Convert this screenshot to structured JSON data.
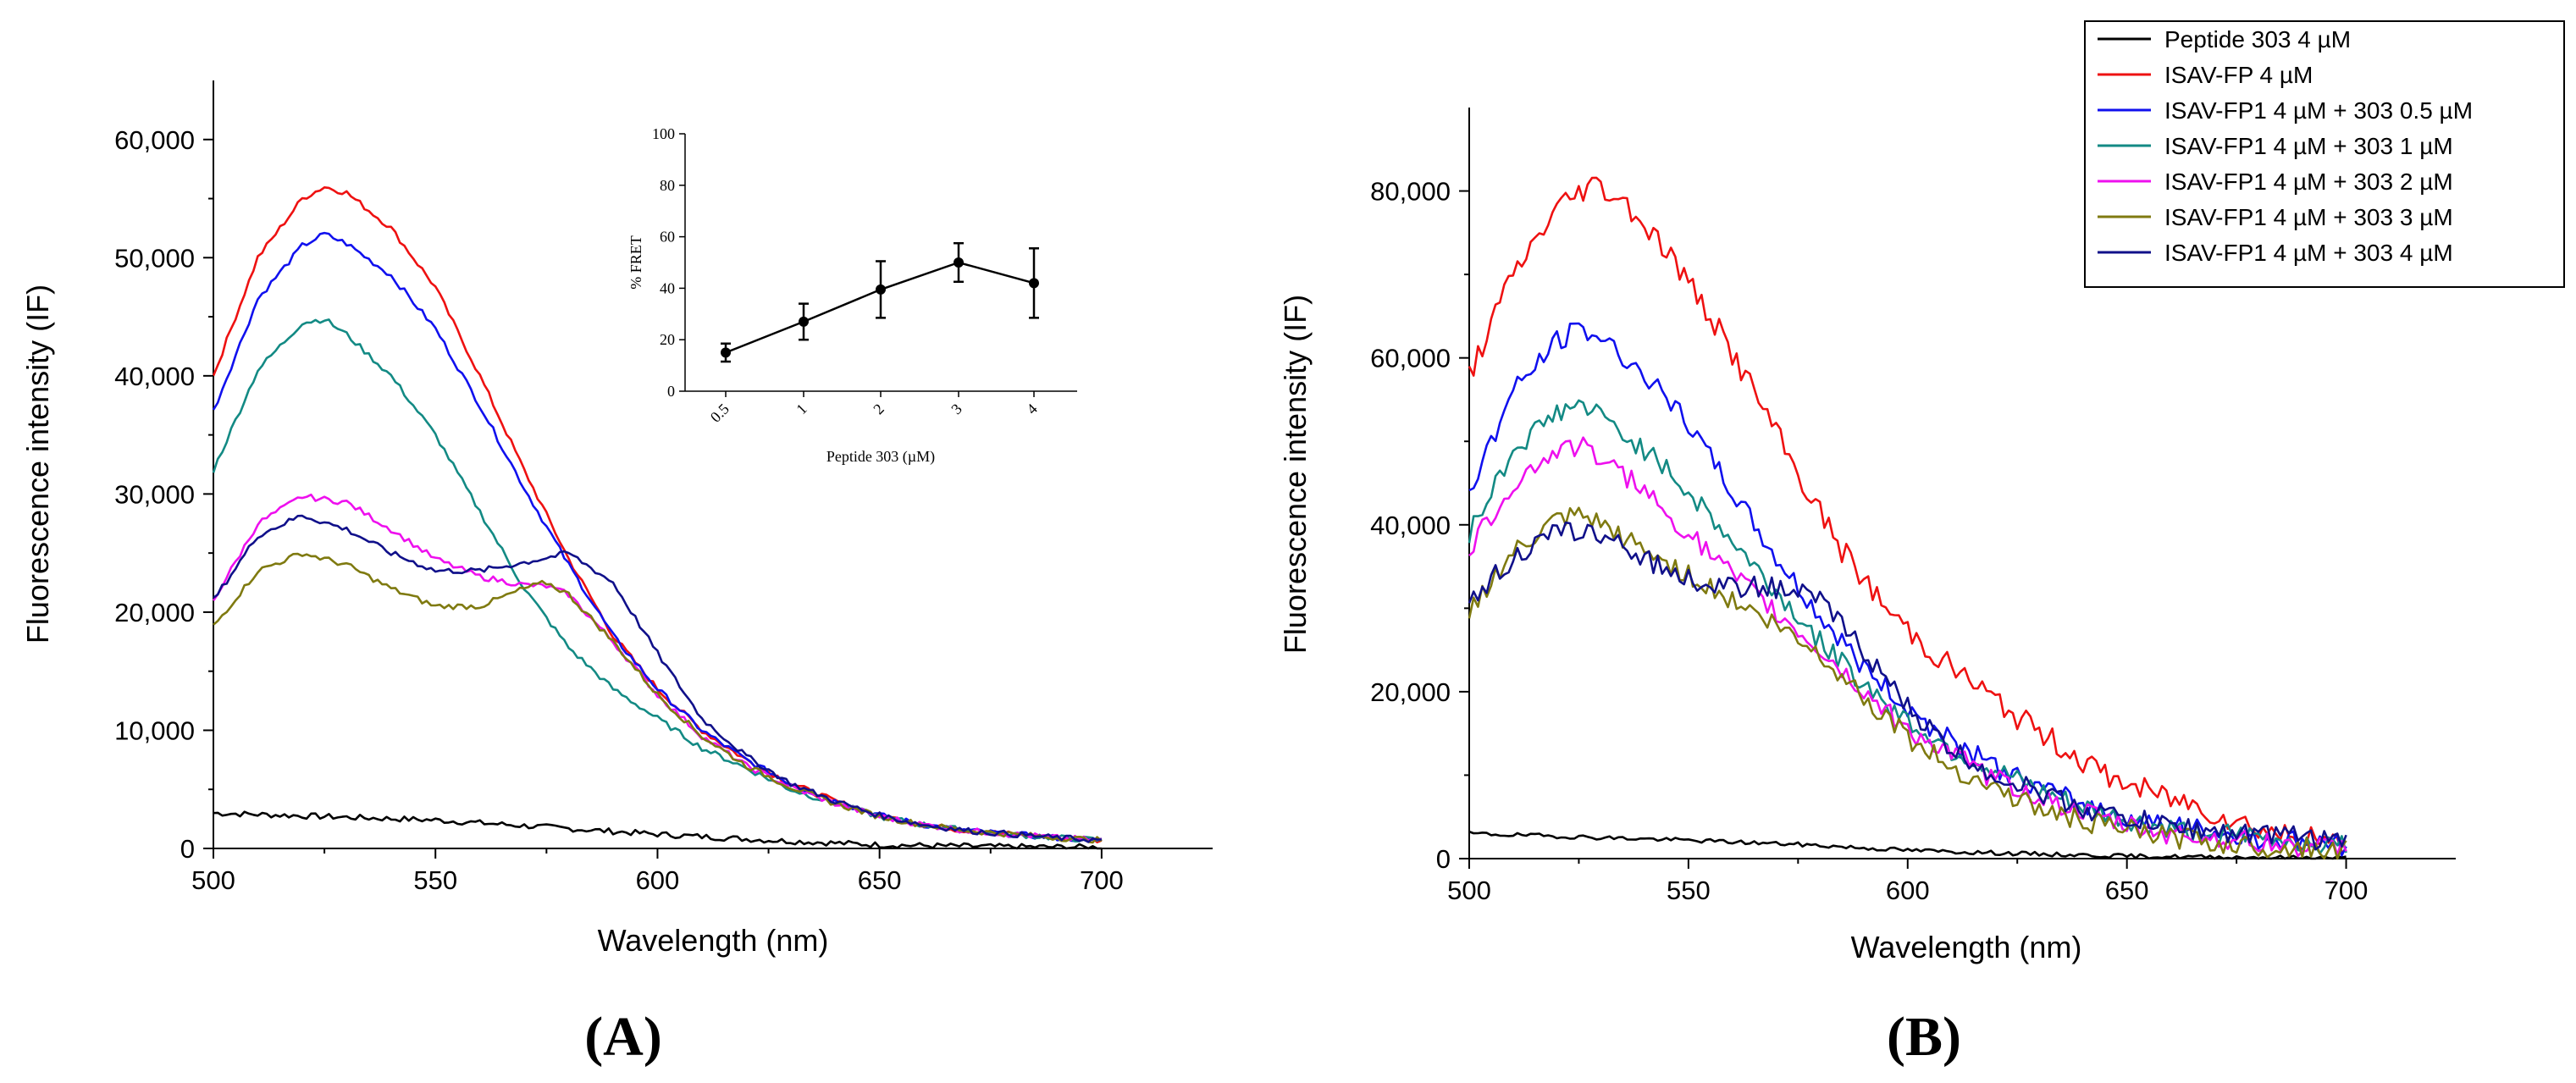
{
  "colors": {
    "peptide303": "#000000",
    "isav_fp": "#ee1111",
    "c05": "#1010ee",
    "c1": "#138a84",
    "c2": "#ee10ee",
    "c3": "#7f7a10",
    "c4": "#10108a"
  },
  "chart_data": [
    {
      "id": "A",
      "type": "line",
      "panel_label": "(A)",
      "xlabel": "Wavelength (nm)",
      "ylabel": "Fluorescence intensity (IF)",
      "xlim": [
        500,
        725
      ],
      "ylim": [
        0,
        65000
      ],
      "x_ticks": [
        500,
        550,
        600,
        650,
        700
      ],
      "x_tick_labels": [
        "500",
        "550",
        "600",
        "650",
        "700"
      ],
      "y_ticks": [
        0,
        10000,
        20000,
        30000,
        40000,
        50000,
        60000
      ],
      "y_tick_labels": [
        "0",
        "10,000",
        "20,000",
        "30,000",
        "40,000",
        "50,000",
        "60,000"
      ],
      "series": [
        {
          "name": "Peptide 303 4 µM",
          "color_key": "peptide303",
          "noise": 250,
          "x": [
            500,
            525,
            550,
            575,
            600,
            625,
            650,
            675,
            700
          ],
          "y": [
            3000,
            2700,
            2400,
            1800,
            1200,
            700,
            300,
            150,
            100
          ]
        },
        {
          "name": "ISAV-FP 4 µM",
          "color_key": "isav_fp",
          "noise": 250,
          "x": [
            500,
            510,
            520,
            525,
            530,
            540,
            550,
            560,
            570,
            580,
            590,
            600,
            610,
            620,
            630,
            640,
            650,
            660,
            670,
            680,
            690,
            700
          ],
          "y": [
            40000,
            50000,
            55000,
            56000,
            55500,
            52500,
            47500,
            40000,
            32000,
            24500,
            18000,
            13500,
            10000,
            7500,
            5500,
            4000,
            2800,
            2000,
            1500,
            1200,
            900,
            700
          ]
        },
        {
          "name": "ISAV-FP1 4 µM + 303 0.5 µM",
          "color_key": "c05",
          "noise": 250,
          "x": [
            500,
            510,
            520,
            525,
            530,
            540,
            550,
            560,
            570,
            580,
            590,
            600,
            610,
            620,
            630,
            640,
            650,
            660,
            670,
            680,
            690,
            700
          ],
          "y": [
            37000,
            46500,
            51000,
            52000,
            51200,
            48500,
            44000,
            37500,
            30500,
            24000,
            18000,
            13500,
            10000,
            7500,
            5500,
            4000,
            2800,
            2000,
            1500,
            1200,
            900,
            700
          ]
        },
        {
          "name": "ISAV-FP1 4 µM + 303 1 µM",
          "color_key": "c1",
          "noise": 250,
          "x": [
            500,
            510,
            520,
            525,
            530,
            540,
            550,
            560,
            570,
            580,
            590,
            600,
            610,
            620,
            630,
            640,
            650,
            660,
            670,
            680,
            690,
            700
          ],
          "y": [
            32000,
            40500,
            44500,
            44800,
            43500,
            40000,
            35000,
            28500,
            22000,
            17000,
            13500,
            11000,
            8500,
            6800,
            5000,
            3800,
            2700,
            2000,
            1500,
            1200,
            900,
            700
          ]
        },
        {
          "name": "ISAV-FP1 4 µM + 303 2 µM",
          "color_key": "c2",
          "noise": 250,
          "x": [
            500,
            510,
            520,
            530,
            540,
            550,
            560,
            570,
            575,
            580,
            590,
            600,
            610,
            620,
            630,
            640,
            650,
            660,
            670,
            680,
            690,
            700
          ],
          "y": [
            21000,
            27500,
            29800,
            29300,
            27000,
            24500,
            23000,
            22300,
            22200,
            21500,
            17500,
            13000,
            9500,
            7000,
            5200,
            3800,
            2700,
            2000,
            1500,
            1200,
            900,
            700
          ]
        },
        {
          "name": "ISAV-FP1 4 µM + 303 3 µM",
          "color_key": "c3",
          "noise": 250,
          "x": [
            500,
            510,
            520,
            530,
            540,
            550,
            560,
            570,
            575,
            580,
            590,
            600,
            610,
            620,
            630,
            640,
            650,
            660,
            670,
            680,
            690,
            700
          ],
          "y": [
            18800,
            23500,
            25000,
            24000,
            22000,
            20500,
            20500,
            22000,
            22500,
            21500,
            17500,
            13000,
            9500,
            7000,
            5200,
            3800,
            2700,
            2000,
            1500,
            1200,
            900,
            700
          ]
        },
        {
          "name": "ISAV-FP1 4 µM + 303 4 µM",
          "color_key": "c4",
          "noise": 250,
          "x": [
            500,
            510,
            520,
            530,
            540,
            550,
            560,
            570,
            580,
            590,
            600,
            610,
            620,
            630,
            640,
            650,
            660,
            670,
            680,
            690,
            700
          ],
          "y": [
            21000,
            26500,
            28200,
            27000,
            25000,
            23500,
            23500,
            24200,
            25000,
            22500,
            16500,
            11000,
            7800,
            5500,
            4000,
            2800,
            2000,
            1500,
            1200,
            900,
            700
          ]
        }
      ],
      "inset": {
        "type": "line",
        "xlabel": "Peptide 303 (µM)",
        "ylabel": "% FRET",
        "ylim": [
          0,
          100
        ],
        "y_ticks": [
          0,
          20,
          40,
          60,
          80,
          100
        ],
        "y_tick_labels": [
          "0",
          "20",
          "40",
          "60",
          "80",
          "100"
        ],
        "categories": [
          "0.5",
          "1",
          "2",
          "3",
          "4"
        ],
        "values": [
          15,
          27,
          39.5,
          50,
          42
        ],
        "errors": [
          3.5,
          7,
          11,
          7.5,
          13.5
        ]
      }
    },
    {
      "id": "B",
      "type": "line",
      "panel_label": "(B)",
      "xlabel": "Wavelength (nm)",
      "ylabel": "Fluorescence intensity (IF)",
      "xlim": [
        500,
        725
      ],
      "ylim": [
        0,
        90000
      ],
      "x_ticks": [
        500,
        550,
        600,
        650,
        700
      ],
      "x_tick_labels": [
        "500",
        "550",
        "600",
        "650",
        "700"
      ],
      "y_ticks": [
        0,
        20000,
        40000,
        60000,
        80000
      ],
      "y_tick_labels": [
        "0",
        "20,000",
        "40,000",
        "60,000",
        "80,000"
      ],
      "series": [
        {
          "name": "Peptide 303 4 µM",
          "color_key": "peptide303",
          "noise": 250,
          "x": [
            500,
            525,
            550,
            575,
            600,
            625,
            650,
            675,
            700
          ],
          "y": [
            3000,
            2600,
            2200,
            1700,
            1000,
            600,
            300,
            150,
            100
          ]
        },
        {
          "name": "ISAV-FP 4 µM",
          "color_key": "isav_fp",
          "noise": 1500,
          "x": [
            500,
            510,
            520,
            528,
            535,
            545,
            555,
            565,
            575,
            585,
            595,
            605,
            615,
            625,
            635,
            645,
            655,
            665,
            675,
            685,
            695,
            700
          ],
          "y": [
            58000,
            70000,
            78000,
            81000,
            79000,
            73000,
            65000,
            56000,
            46000,
            37000,
            30000,
            25000,
            21000,
            17000,
            13500,
            10000,
            8000,
            6500,
            4500,
            3000,
            2000,
            1500
          ]
        },
        {
          "name": "ISAV-FP1 4 µM + 303 0.5 µM",
          "color_key": "c05",
          "noise": 1300,
          "x": [
            500,
            510,
            520,
            525,
            530,
            540,
            550,
            560,
            570,
            580,
            590,
            600,
            610,
            620,
            630,
            640,
            650,
            660,
            670,
            680,
            690,
            700
          ],
          "y": [
            44000,
            56000,
            62000,
            63500,
            62500,
            58000,
            52000,
            44000,
            36000,
            29000,
            23000,
            18000,
            14000,
            11000,
            8500,
            6500,
            5000,
            4000,
            3000,
            2500,
            2000,
            1500
          ]
        },
        {
          "name": "ISAV-FP1 4 µM + 303 1 µM",
          "color_key": "c1",
          "noise": 1300,
          "x": [
            500,
            510,
            520,
            525,
            530,
            540,
            550,
            560,
            570,
            580,
            590,
            600,
            610,
            620,
            630,
            640,
            650,
            660,
            670,
            680,
            690,
            700
          ],
          "y": [
            39000,
            49000,
            53500,
            54500,
            53000,
            49000,
            44000,
            38000,
            32000,
            26000,
            21000,
            16500,
            13000,
            10500,
            8000,
            6000,
            4500,
            3500,
            3000,
            2500,
            2000,
            1500
          ]
        },
        {
          "name": "ISAV-FP1 4 µM + 303 2 µM",
          "color_key": "c2",
          "noise": 1300,
          "x": [
            500,
            510,
            520,
            525,
            530,
            540,
            550,
            560,
            570,
            580,
            590,
            600,
            610,
            620,
            630,
            640,
            650,
            660,
            670,
            680,
            690,
            700
          ],
          "y": [
            37000,
            45000,
            49000,
            49500,
            48000,
            44000,
            39000,
            34000,
            29500,
            25000,
            20000,
            15500,
            12500,
            9500,
            7500,
            5500,
            4000,
            3000,
            2500,
            2000,
            1500,
            1200
          ]
        },
        {
          "name": "ISAV-FP1 4 µM + 303 3 µM",
          "color_key": "c3",
          "noise": 1300,
          "x": [
            500,
            510,
            520,
            525,
            530,
            540,
            550,
            560,
            570,
            580,
            590,
            600,
            610,
            620,
            630,
            640,
            650,
            660,
            670,
            680,
            690,
            700
          ],
          "y": [
            30000,
            36500,
            40500,
            41000,
            40000,
            37000,
            34000,
            31000,
            28000,
            24500,
            19500,
            14500,
            11000,
            8500,
            6000,
            4500,
            3500,
            2500,
            2000,
            1500,
            1200,
            1000
          ]
        },
        {
          "name": "ISAV-FP1 4 µM + 303 4 µM",
          "color_key": "c4",
          "noise": 1300,
          "x": [
            500,
            510,
            520,
            525,
            530,
            540,
            550,
            560,
            570,
            580,
            590,
            600,
            610,
            620,
            630,
            640,
            650,
            660,
            670,
            680,
            690,
            700
          ],
          "y": [
            31000,
            36000,
            39000,
            39500,
            38500,
            36000,
            33500,
            32500,
            32500,
            31000,
            25000,
            18000,
            13000,
            10000,
            8000,
            6000,
            4800,
            4000,
            3300,
            3000,
            2500,
            2000
          ]
        }
      ]
    }
  ]
}
